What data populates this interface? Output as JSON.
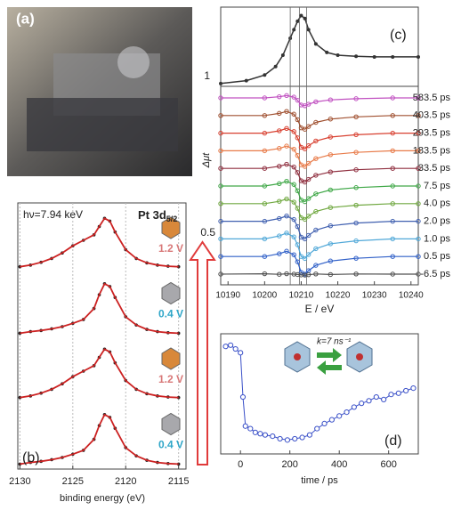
{
  "photo": {
    "label": "(a)"
  },
  "chart_data": [
    {
      "type": "line",
      "label": "(b)",
      "annotation": "hν=7.94 keV",
      "title_main": "Pt 3d",
      "title_sub": "5/2",
      "xlabel": "binding energy (eV)",
      "xlim": [
        2130.2,
        2114.3
      ],
      "xticks": [
        2130,
        2125,
        2120,
        2115
      ],
      "grid": true,
      "ylim": [
        0,
        1.1
      ],
      "fit_color": "#cc2222",
      "marker_color": "#222222",
      "x": [
        2130,
        2129,
        2128,
        2127,
        2126,
        2125,
        2124,
        2123,
        2122.5,
        2122,
        2121.5,
        2121,
        2120,
        2119,
        2118,
        2117,
        2116,
        2115
      ],
      "series": [
        {
          "name": "1.2 V",
          "color": "#d87878",
          "values": [
            0.07,
            0.1,
            0.15,
            0.22,
            0.32,
            0.45,
            0.55,
            0.65,
            0.8,
            0.95,
            0.9,
            0.7,
            0.38,
            0.22,
            0.14,
            0.1,
            0.08,
            0.07
          ]
        },
        {
          "name": "0.4 V",
          "color": "#2fa6c8",
          "values": [
            0.05,
            0.08,
            0.1,
            0.13,
            0.17,
            0.23,
            0.3,
            0.5,
            0.75,
            0.95,
            0.9,
            0.7,
            0.35,
            0.2,
            0.12,
            0.08,
            0.06,
            0.05
          ]
        },
        {
          "name": "1.2 V",
          "color": "#d87878",
          "values": [
            0.07,
            0.1,
            0.15,
            0.22,
            0.32,
            0.45,
            0.55,
            0.65,
            0.8,
            0.95,
            0.9,
            0.7,
            0.38,
            0.22,
            0.14,
            0.1,
            0.08,
            0.07
          ]
        },
        {
          "name": "0.4 V",
          "color": "#2fa6c8",
          "values": [
            0.05,
            0.08,
            0.1,
            0.13,
            0.17,
            0.23,
            0.3,
            0.5,
            0.75,
            0.95,
            0.9,
            0.7,
            0.35,
            0.2,
            0.12,
            0.08,
            0.06,
            0.05
          ]
        }
      ]
    },
    {
      "type": "line",
      "label": "(c)",
      "scale_label": "1",
      "color": "#333333",
      "xlim": [
        10188,
        10242
      ],
      "ylim": [
        0,
        1.4
      ],
      "x": [
        10188,
        10195,
        10200,
        10203,
        10205,
        10207,
        10208,
        10209,
        10210,
        10211,
        10212,
        10214,
        10217,
        10220,
        10225,
        10230,
        10235,
        10242
      ],
      "values": [
        0.05,
        0.1,
        0.2,
        0.35,
        0.55,
        0.85,
        1.0,
        1.15,
        1.25,
        1.2,
        1.0,
        0.75,
        0.6,
        0.55,
        0.53,
        0.52,
        0.52,
        0.52
      ]
    },
    {
      "type": "line",
      "ylabel": "Δμt",
      "xlabel": "E / eV",
      "scale_label": "0.5",
      "xlim": [
        10188,
        10242
      ],
      "xticks": [
        10190,
        10200,
        10210,
        10220,
        10230,
        10240
      ],
      "reference_lines": [
        10207,
        10209.5,
        10211.5
      ],
      "x": [
        10188,
        10200,
        10204,
        10206,
        10208,
        10209,
        10210,
        10211,
        10212,
        10214,
        10218,
        10225,
        10235,
        10242
      ],
      "series": [
        {
          "name": "583.5 ps",
          "color": "#c050c0",
          "values": [
            0,
            0,
            0.06,
            0.12,
            0.04,
            -0.12,
            -0.36,
            -0.4,
            -0.32,
            -0.2,
            -0.1,
            -0.04,
            0,
            0
          ]
        },
        {
          "name": "403.5 ps",
          "color": "#a05030",
          "values": [
            0,
            0,
            0.11,
            0.21,
            0.07,
            -0.21,
            -0.63,
            -0.7,
            -0.56,
            -0.35,
            -0.18,
            -0.07,
            0,
            0
          ]
        },
        {
          "name": "293.5 ps",
          "color": "#d84030",
          "values": [
            0,
            0,
            0.12,
            0.24,
            0.08,
            -0.24,
            -0.72,
            -0.8,
            -0.64,
            -0.4,
            -0.2,
            -0.08,
            0,
            0
          ]
        },
        {
          "name": "183.5 ps",
          "color": "#e87a48",
          "values": [
            0,
            0,
            0.12,
            0.24,
            0.08,
            -0.24,
            -0.72,
            -0.8,
            -0.64,
            -0.4,
            -0.2,
            -0.08,
            0,
            0
          ]
        },
        {
          "name": "33.5 ps",
          "color": "#903040",
          "values": [
            0,
            0,
            0.11,
            0.21,
            0.07,
            -0.21,
            -0.63,
            -0.7,
            -0.56,
            -0.35,
            -0.18,
            -0.07,
            0,
            0
          ]
        },
        {
          "name": "7.5 ps",
          "color": "#40a848",
          "values": [
            0,
            0,
            0.12,
            0.24,
            0.08,
            -0.24,
            -0.72,
            -0.8,
            -0.64,
            -0.4,
            -0.2,
            -0.08,
            0,
            0
          ]
        },
        {
          "name": "4.0 ps",
          "color": "#70a840",
          "values": [
            0,
            0,
            0.12,
            0.24,
            0.08,
            -0.24,
            -0.72,
            -0.8,
            -0.64,
            -0.4,
            -0.2,
            -0.08,
            0,
            0
          ]
        },
        {
          "name": "2.0 ps",
          "color": "#4060b0",
          "values": [
            0,
            0,
            0.14,
            0.27,
            0.09,
            -0.27,
            -0.81,
            -0.9,
            -0.72,
            -0.45,
            -0.23,
            -0.09,
            0,
            0
          ]
        },
        {
          "name": "1.0 ps",
          "color": "#50a8d8",
          "values": [
            0,
            0,
            0.15,
            0.3,
            0.1,
            -0.3,
            -0.9,
            -1,
            -0.8,
            -0.5,
            -0.25,
            -0.1,
            0,
            0
          ]
        },
        {
          "name": "0.5 ps",
          "color": "#3060c8",
          "values": [
            0,
            0,
            0.14,
            0.27,
            0.09,
            -0.27,
            -0.81,
            -0.9,
            -0.72,
            -0.45,
            -0.23,
            -0.09,
            0,
            0
          ]
        },
        {
          "name": "-6.5 ps",
          "color": "#505050",
          "values": [
            0,
            0.02,
            -0.01,
            0.02,
            0,
            -0.02,
            -0.04,
            -0.05,
            -0.03,
            0.01,
            -0.02,
            0.01,
            0,
            0
          ]
        }
      ]
    },
    {
      "type": "scatter",
      "label": "(d)",
      "annotation": "k=7 ns⁻¹",
      "xlabel": "time / ps",
      "color": "#3a50c8",
      "xlim": [
        -80,
        720
      ],
      "xticks": [
        0,
        200,
        400,
        600
      ],
      "ylim": [
        0.1,
        1.05
      ],
      "x": [
        -60,
        -40,
        -20,
        0,
        10,
        20,
        40,
        60,
        80,
        100,
        130,
        160,
        190,
        220,
        250,
        280,
        310,
        340,
        370,
        400,
        430,
        460,
        490,
        520,
        550,
        580,
        610,
        640,
        670,
        700
      ],
      "values": [
        0.95,
        0.96,
        0.93,
        0.9,
        0.55,
        0.32,
        0.3,
        0.27,
        0.26,
        0.25,
        0.24,
        0.22,
        0.21,
        0.22,
        0.23,
        0.25,
        0.3,
        0.34,
        0.37,
        0.4,
        0.43,
        0.47,
        0.5,
        0.52,
        0.55,
        0.53,
        0.57,
        0.58,
        0.6,
        0.62
      ]
    }
  ]
}
